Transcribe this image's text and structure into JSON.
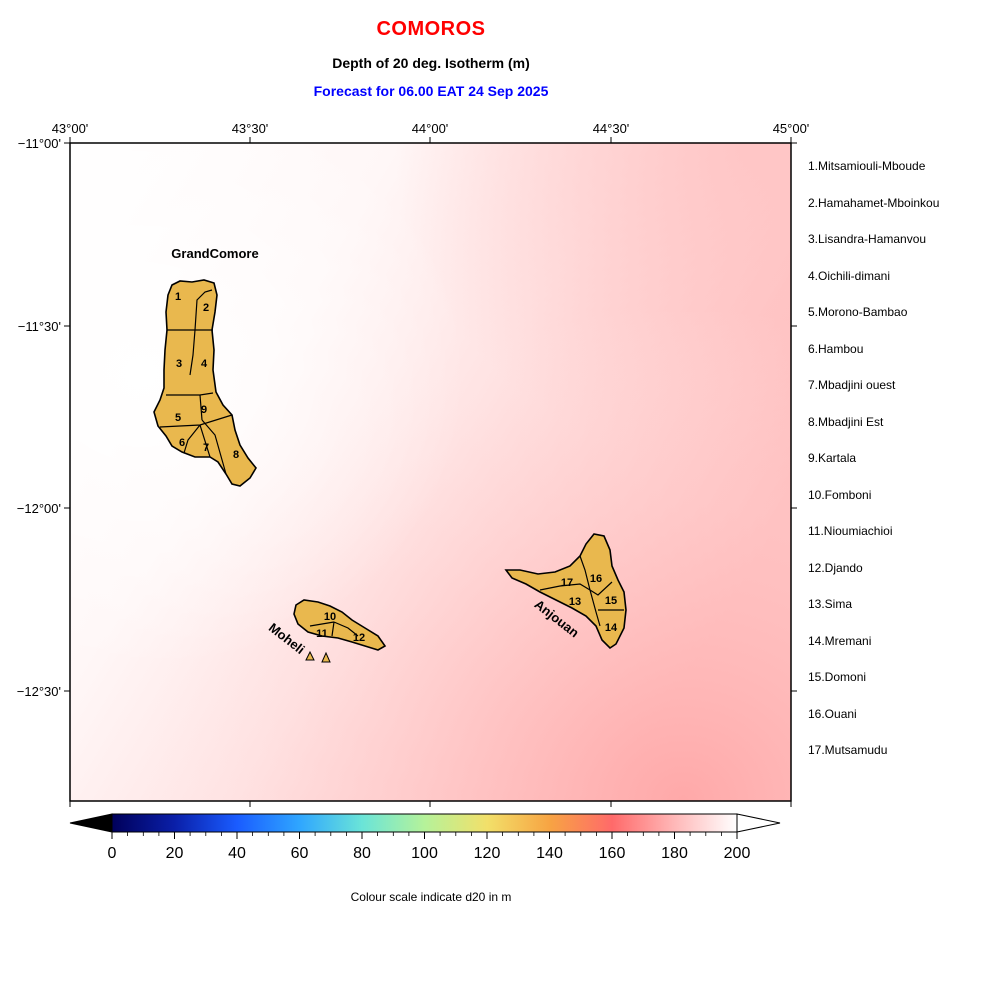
{
  "title": "COMOROS",
  "subtitle": "Depth of 20 deg. Isotherm (m)",
  "forecast": "Forecast for  06.00 EAT 24 Sep 2025",
  "colorbar_caption": "Colour scale indicate d20 in m",
  "colors": {
    "title": "#ff0000",
    "forecast": "#0000ff",
    "land": "#e9b84e",
    "sea_low": "#ffffff",
    "sea_high": "#ffb0b0"
  },
  "map": {
    "lon_range": [
      43.0,
      45.0
    ],
    "lat_range": [
      -12.75,
      -11.0
    ],
    "top_ticks": [
      "43°00'",
      "43°30'",
      "44°00'",
      "44°30'",
      "45°00'"
    ],
    "left_ticks": [
      "−11°00'",
      "−11°30'",
      "−12°00'",
      "−12°30'"
    ],
    "island_names": {
      "grand_comore": "GrandComore",
      "moheli": "Moheli",
      "anjouan": "Anjouan"
    },
    "region_numbers": [
      "1",
      "2",
      "3",
      "4",
      "5",
      "6",
      "7",
      "8",
      "9",
      "10",
      "11",
      "12",
      "13",
      "14",
      "15",
      "16",
      "17"
    ]
  },
  "legend": [
    "1.Mitsamiouli-Mboude",
    "2.Hamahamet-Mboinkou",
    "3.Lisandra-Hamanvou",
    "4.Oichili-dimani",
    "5.Morono-Bambao",
    "6.Hambou",
    "7.Mbadjini ouest",
    "8.Mbadjini Est",
    "9.Kartala",
    "10.Fomboni",
    "11.Nioumiachioi",
    "12.Djando",
    "13.Sima",
    "14.Mremani",
    "15.Domoni",
    "16.Ouani",
    "17.Mutsamudu"
  ],
  "colorbar": {
    "ticks": [
      "0",
      "20",
      "40",
      "60",
      "80",
      "100",
      "120",
      "140",
      "160",
      "180",
      "200"
    ],
    "range": [
      0,
      200
    ]
  }
}
